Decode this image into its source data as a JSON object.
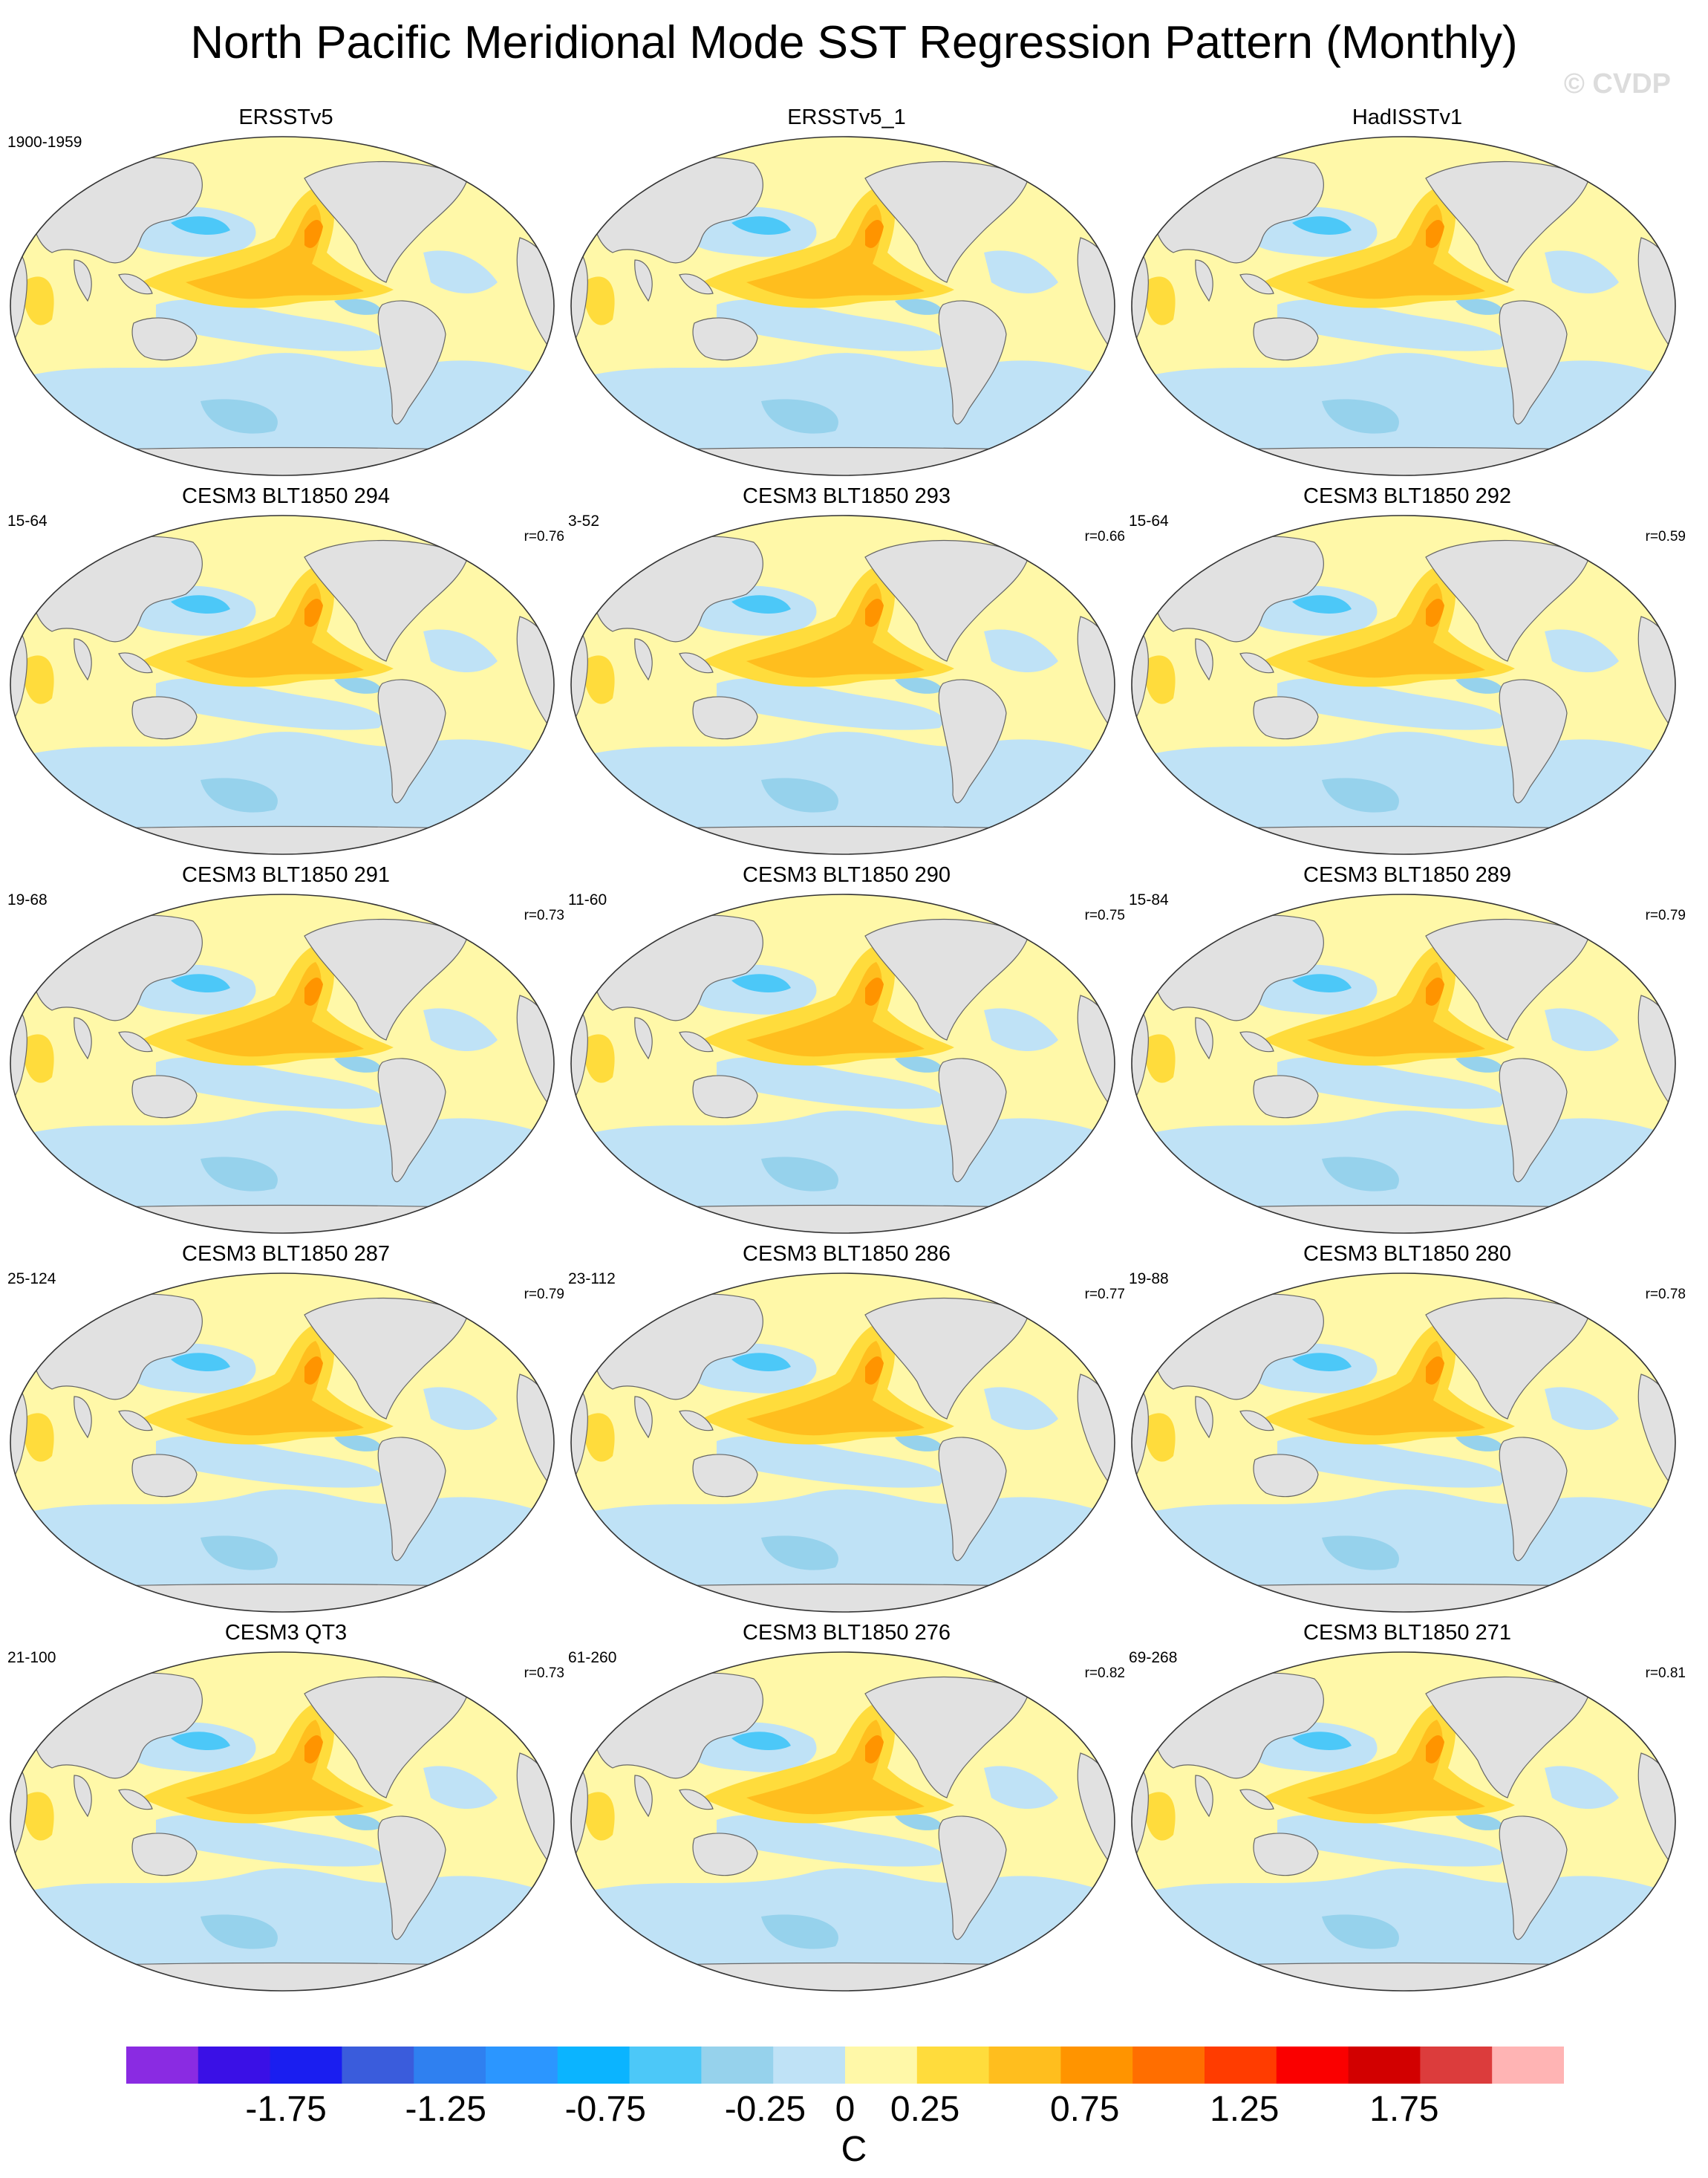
{
  "title": "North Pacific Meridional Mode SST Regression Pattern (Monthly)",
  "watermark": "© CVDP",
  "panels": [
    {
      "name": "ERSSTv5",
      "years": "1900-1959",
      "corr": ""
    },
    {
      "name": "ERSSTv5_1",
      "years": "",
      "corr": ""
    },
    {
      "name": "HadISSTv1",
      "years": "",
      "corr": ""
    },
    {
      "name": "CESM3 BLT1850 294",
      "years": "15-64",
      "corr": "r=0.76"
    },
    {
      "name": "CESM3 BLT1850 293",
      "years": "3-52",
      "corr": "r=0.66"
    },
    {
      "name": "CESM3 BLT1850 292",
      "years": "15-64",
      "corr": "r=0.59"
    },
    {
      "name": "CESM3 BLT1850 291",
      "years": "19-68",
      "corr": "r=0.73"
    },
    {
      "name": "CESM3 BLT1850 290",
      "years": "11-60",
      "corr": "r=0.75"
    },
    {
      "name": "CESM3 BLT1850 289",
      "years": "15-84",
      "corr": "r=0.79"
    },
    {
      "name": "CESM3 BLT1850 287",
      "years": "25-124",
      "corr": "r=0.79"
    },
    {
      "name": "CESM3 BLT1850 286",
      "years": "23-112",
      "corr": "r=0.77"
    },
    {
      "name": "CESM3 BLT1850 280",
      "years": "19-88",
      "corr": "r=0.78"
    },
    {
      "name": "CESM3 QT3",
      "years": "21-100",
      "corr": "r=0.73"
    },
    {
      "name": "CESM3 BLT1850 276",
      "years": "61-260",
      "corr": "r=0.82"
    },
    {
      "name": "CESM3 BLT1850 271",
      "years": "69-268",
      "corr": "r=0.81"
    }
  ],
  "colorbar": {
    "colors": [
      "#8a2be2",
      "#3a10e6",
      "#1a1ef0",
      "#3a5cdc",
      "#2f80f0",
      "#2b96ff",
      "#0bb4ff",
      "#4cc8f8",
      "#96d2ec",
      "#bfe2f6",
      "#fff8a8",
      "#ffdc3c",
      "#ffbe1e",
      "#ff9400",
      "#ff6e00",
      "#ff3c00",
      "#fa0000",
      "#d20000",
      "#dc3c3c",
      "#ffb4b4"
    ],
    "labels": [
      "-1.75",
      "-1.25",
      "-0.75",
      "-0.25",
      "0",
      "0.25",
      "0.75",
      "1.25",
      "1.75"
    ],
    "label_values": [
      -1.75,
      -1.25,
      -0.75,
      -0.25,
      0,
      0.25,
      0.75,
      1.25,
      1.75
    ],
    "min": -2.25,
    "max": 2.25,
    "unit": "C"
  },
  "map_colors": {
    "ocean": "#fff8a8",
    "land": "#e1e1e1",
    "light_blue": "#bfe2f6",
    "blue": "#96d2ec",
    "dark_blue": "#4cc8f8",
    "yellow": "#ffdc3c",
    "orange": "#ffbe1e",
    "dark_orange": "#ff9400"
  }
}
